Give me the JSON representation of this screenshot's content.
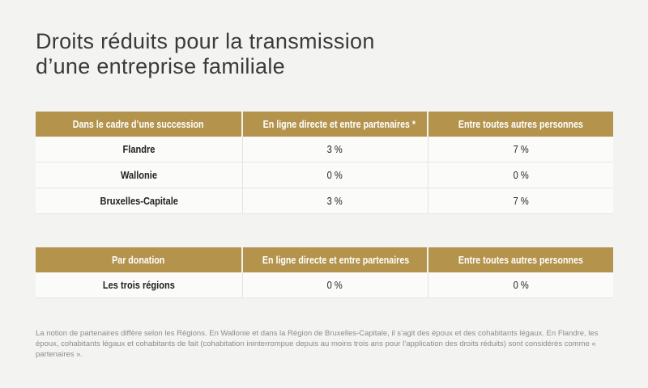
{
  "title": {
    "line1": "Droits réduits pour la transmission",
    "line2": "d’une entreprise familiale"
  },
  "succession_table": {
    "headers": [
      "Dans le cadre d’une succession",
      "En ligne directe et entre partenaires *",
      "Entre toutes autres personnes"
    ],
    "rows": [
      {
        "region": "Flandre",
        "direct": "3 %",
        "other": "7 %"
      },
      {
        "region": "Wallonie",
        "direct": "0 %",
        "other": "0 %"
      },
      {
        "region": "Bruxelles-Capitale",
        "direct": "3 %",
        "other": "7 %"
      }
    ]
  },
  "donation_table": {
    "headers": [
      "Par donation",
      "En ligne directe et entre partenaires",
      "Entre toutes autres personnes"
    ],
    "rows": [
      {
        "region": "Les trois régions",
        "direct": "0 %",
        "other": "0 %"
      }
    ]
  },
  "footnote": "La notion de partenaires diffère selon les Régions. En Wallonie et dans la Région de Bruxelles-Capitale, il s’agit des époux et des cohabitants légaux. En Flandre, les époux, cohabitants légaux et cohabitants de fait (cohabitation ininterrompue depuis au moins trois ans pour l’application des droits réduits) sont considérés comme « partenaires »."
}
